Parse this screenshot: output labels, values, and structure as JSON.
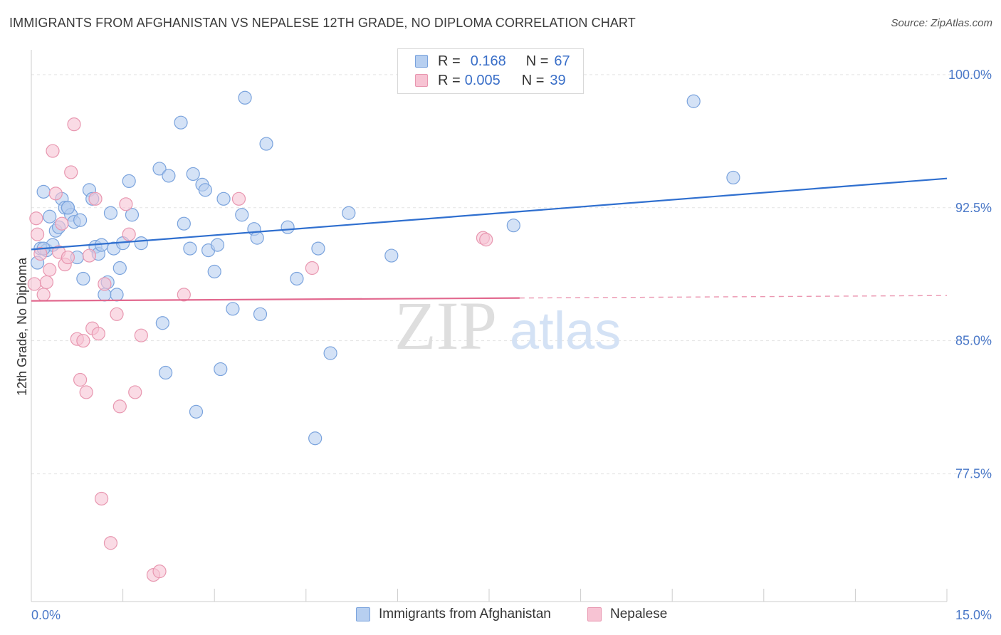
{
  "title": "IMMIGRANTS FROM AFGHANISTAN VS NEPALESE 12TH GRADE, NO DIPLOMA CORRELATION CHART",
  "source": "Source: ZipAtlas.com",
  "watermark": {
    "zip": "ZIP",
    "atlas": "atlas"
  },
  "legend": {
    "r_label": "R =",
    "n_label": "N =",
    "rows": [
      {
        "r": "0.168",
        "n": "67"
      },
      {
        "r": "0.005",
        "n": "39"
      }
    ]
  },
  "colors": {
    "blue_fill": "#b7cff0",
    "blue_stroke": "#7aa3dd",
    "blue_line": "#2f6fcf",
    "pink_fill": "#f7c3d3",
    "pink_stroke": "#e897b0",
    "pink_line": "#e2698f",
    "tick_text": "#4a78c8",
    "grid": "#e3e3e3"
  },
  "chart_data": {
    "type": "scatter",
    "title": "IMMIGRANTS FROM AFGHANISTAN VS NEPALESE 12TH GRADE, NO DIPLOMA CORRELATION CHART",
    "xlabel": "",
    "ylabel": "12th Grade, No Diploma",
    "xlim": [
      0,
      15
    ],
    "ylim": [
      70.3,
      101.4
    ],
    "x_ticks": [
      {
        "value": 0,
        "label": "0.0%"
      },
      {
        "value": 15,
        "label": "15.0%"
      }
    ],
    "y_ticks": [
      {
        "value": 100,
        "label": "100.0%"
      },
      {
        "value": 92.5,
        "label": "92.5%"
      },
      {
        "value": 85,
        "label": "85.0%"
      },
      {
        "value": 77.5,
        "label": "77.5%"
      }
    ],
    "grid": true,
    "legend_position": "top-center",
    "series": [
      {
        "name": "Immigrants from Afghanistan",
        "color": "#b7cff0",
        "r": 0.168,
        "n": 67,
        "trend": {
          "x": [
            0,
            15
          ],
          "y": [
            90.15,
            94.15
          ],
          "dashed_from": null
        },
        "points": [
          [
            0.1,
            89.4
          ],
          [
            0.15,
            90.2
          ],
          [
            0.2,
            93.4
          ],
          [
            0.25,
            90.1
          ],
          [
            0.3,
            92.0
          ],
          [
            0.35,
            90.4
          ],
          [
            0.4,
            91.2
          ],
          [
            0.45,
            91.4
          ],
          [
            0.5,
            93.0
          ],
          [
            0.55,
            92.5
          ],
          [
            0.6,
            92.5
          ],
          [
            0.65,
            92.1
          ],
          [
            0.7,
            91.7
          ],
          [
            0.75,
            89.7
          ],
          [
            0.8,
            91.8
          ],
          [
            0.85,
            88.5
          ],
          [
            0.95,
            93.5
          ],
          [
            1.0,
            93.0
          ],
          [
            1.05,
            90.3
          ],
          [
            1.1,
            89.9
          ],
          [
            1.15,
            90.4
          ],
          [
            1.2,
            87.6
          ],
          [
            1.25,
            88.3
          ],
          [
            1.3,
            92.2
          ],
          [
            1.35,
            90.2
          ],
          [
            1.4,
            87.6
          ],
          [
            1.45,
            89.1
          ],
          [
            1.5,
            90.5
          ],
          [
            1.6,
            94.0
          ],
          [
            1.65,
            92.1
          ],
          [
            1.8,
            90.5
          ],
          [
            2.1,
            94.7
          ],
          [
            2.15,
            86.0
          ],
          [
            2.2,
            83.2
          ],
          [
            2.25,
            94.3
          ],
          [
            2.45,
            97.3
          ],
          [
            2.5,
            91.6
          ],
          [
            2.6,
            90.2
          ],
          [
            2.65,
            94.4
          ],
          [
            2.7,
            81.0
          ],
          [
            2.8,
            93.8
          ],
          [
            2.85,
            93.5
          ],
          [
            2.9,
            90.1
          ],
          [
            3.0,
            88.9
          ],
          [
            3.05,
            90.4
          ],
          [
            3.1,
            83.4
          ],
          [
            3.15,
            93.0
          ],
          [
            3.3,
            86.8
          ],
          [
            3.45,
            92.1
          ],
          [
            3.5,
            98.7
          ],
          [
            3.65,
            91.3
          ],
          [
            3.7,
            90.8
          ],
          [
            3.75,
            86.5
          ],
          [
            3.85,
            96.1
          ],
          [
            4.2,
            91.4
          ],
          [
            4.35,
            88.5
          ],
          [
            4.65,
            79.5
          ],
          [
            4.7,
            90.2
          ],
          [
            4.9,
            84.3
          ],
          [
            5.2,
            92.2
          ],
          [
            5.9,
            89.8
          ],
          [
            7.2,
            100.3
          ],
          [
            7.9,
            91.5
          ],
          [
            10.85,
            98.5
          ],
          [
            11.5,
            94.2
          ],
          [
            0.6,
            92.5
          ],
          [
            0.2,
            90.2
          ]
        ]
      },
      {
        "name": "Nepalese",
        "color": "#f7c3d3",
        "r": 0.005,
        "n": 39,
        "trend": {
          "x": [
            0,
            15
          ],
          "y": [
            87.25,
            87.55
          ],
          "dashed_from": 8.0
        },
        "points": [
          [
            0.05,
            88.2
          ],
          [
            0.08,
            91.9
          ],
          [
            0.1,
            91.0
          ],
          [
            0.15,
            89.9
          ],
          [
            0.2,
            87.6
          ],
          [
            0.25,
            88.3
          ],
          [
            0.3,
            89.0
          ],
          [
            0.35,
            95.7
          ],
          [
            0.4,
            93.3
          ],
          [
            0.45,
            90.0
          ],
          [
            0.5,
            91.6
          ],
          [
            0.55,
            89.3
          ],
          [
            0.6,
            89.7
          ],
          [
            0.65,
            94.5
          ],
          [
            0.7,
            97.2
          ],
          [
            0.75,
            85.1
          ],
          [
            0.8,
            82.8
          ],
          [
            0.85,
            85.0
          ],
          [
            0.9,
            82.1
          ],
          [
            0.95,
            89.8
          ],
          [
            1.0,
            85.7
          ],
          [
            1.05,
            93.0
          ],
          [
            1.1,
            85.4
          ],
          [
            1.15,
            76.1
          ],
          [
            1.2,
            88.2
          ],
          [
            1.3,
            73.6
          ],
          [
            1.4,
            86.5
          ],
          [
            1.45,
            81.3
          ],
          [
            1.55,
            92.7
          ],
          [
            1.6,
            91.0
          ],
          [
            1.7,
            82.1
          ],
          [
            1.8,
            85.3
          ],
          [
            2.0,
            71.8
          ],
          [
            2.1,
            72.0
          ],
          [
            2.5,
            87.6
          ],
          [
            3.4,
            93.0
          ],
          [
            4.6,
            89.1
          ],
          [
            7.4,
            90.8
          ],
          [
            7.45,
            90.7
          ]
        ]
      }
    ]
  },
  "bottom_legend": [
    "Immigrants from Afghanistan",
    "Nepalese"
  ]
}
